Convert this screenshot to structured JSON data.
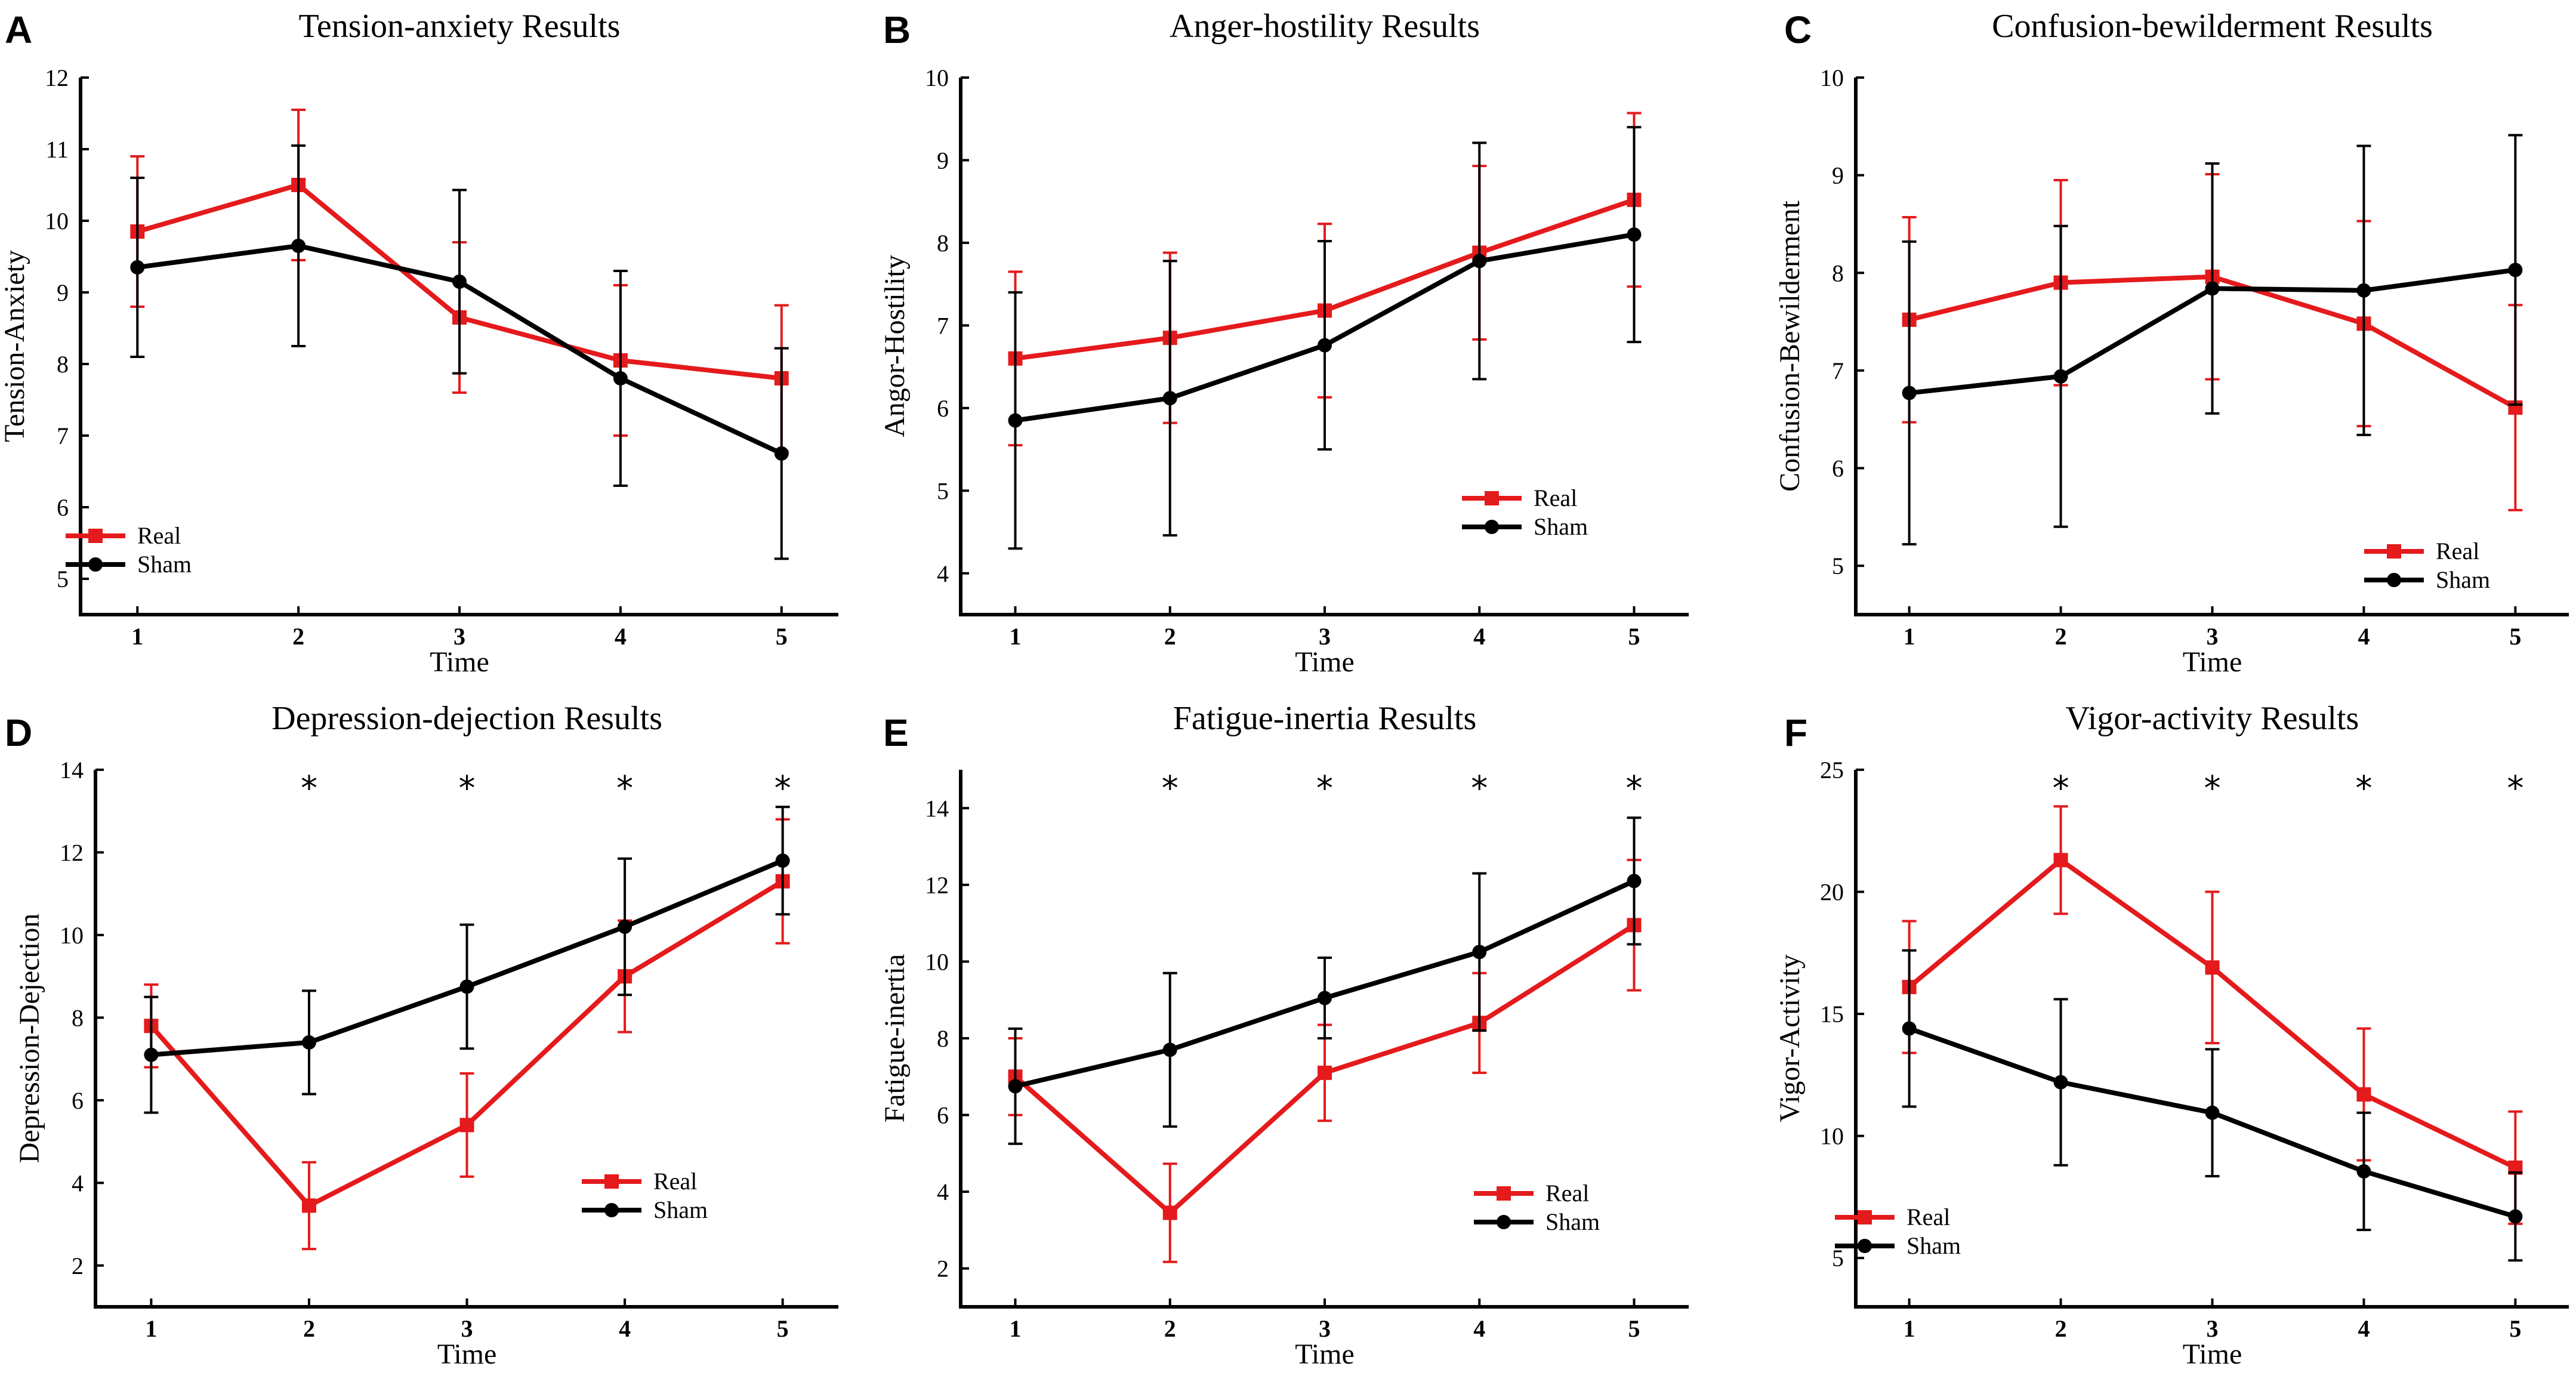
{
  "colors": {
    "real": "#e41a1c",
    "sham": "#000000",
    "axis": "#000000"
  },
  "chart_data": [
    {
      "panel": "A",
      "type": "line",
      "title": "Tension-anxiety Results",
      "xlabel": "Time",
      "ylabel": "Tension-Anxiety",
      "categories": [
        "1",
        "2",
        "3",
        "4",
        "5"
      ],
      "ylim": [
        4.5,
        12
      ],
      "yticks": [
        5,
        6,
        7,
        8,
        9,
        10,
        11,
        12
      ],
      "legend": "bottom-left",
      "significance": [],
      "series": [
        {
          "name": "Real",
          "values": [
            9.85,
            10.5,
            8.65,
            8.05,
            7.8
          ],
          "errors": [
            1.05,
            1.05,
            1.05,
            1.05,
            1.02
          ]
        },
        {
          "name": "Sham",
          "values": [
            9.35,
            9.65,
            9.15,
            7.8,
            6.75
          ],
          "errors": [
            1.25,
            1.4,
            1.28,
            1.5,
            1.47
          ]
        }
      ]
    },
    {
      "panel": "B",
      "type": "line",
      "title": "Anger-hostility Results",
      "xlabel": "Time",
      "ylabel": "Angor-Hostility",
      "categories": [
        "1",
        "2",
        "3",
        "4",
        "5"
      ],
      "ylim": [
        3.5,
        10
      ],
      "yticks": [
        4,
        5,
        6,
        7,
        8,
        9,
        10
      ],
      "legend": "bottom-right",
      "significance": [],
      "series": [
        {
          "name": "Real",
          "values": [
            6.6,
            6.85,
            7.18,
            7.88,
            8.52
          ],
          "errors": [
            1.05,
            1.03,
            1.05,
            1.05,
            1.05
          ]
        },
        {
          "name": "Sham",
          "values": [
            5.85,
            6.12,
            6.76,
            7.78,
            8.1
          ],
          "errors": [
            1.55,
            1.66,
            1.26,
            1.43,
            1.3
          ]
        }
      ]
    },
    {
      "panel": "C",
      "type": "line",
      "title": "Confusion-bewilderment Results",
      "xlabel": "Time",
      "ylabel": "Confusion-Bewilderment",
      "categories": [
        "1",
        "2",
        "3",
        "4",
        "5"
      ],
      "ylim": [
        4.5,
        10
      ],
      "yticks": [
        5,
        6,
        7,
        8,
        9,
        10
      ],
      "legend": "bottom-right",
      "significance": [],
      "series": [
        {
          "name": "Real",
          "values": [
            7.52,
            7.9,
            7.96,
            7.48,
            6.62
          ],
          "errors": [
            1.05,
            1.05,
            1.05,
            1.05,
            1.05
          ]
        },
        {
          "name": "Sham",
          "values": [
            6.77,
            6.94,
            7.84,
            7.82,
            8.03
          ],
          "errors": [
            1.55,
            1.54,
            1.28,
            1.48,
            1.38
          ]
        }
      ]
    },
    {
      "panel": "D",
      "type": "line",
      "title": "Depression-dejection Results",
      "xlabel": "Time",
      "ylabel": "Depression-Dejection",
      "categories": [
        "1",
        "2",
        "3",
        "4",
        "5"
      ],
      "ylim": [
        1,
        14
      ],
      "yticks": [
        2,
        4,
        6,
        8,
        10,
        12,
        14
      ],
      "legend": "bottom-right",
      "significance": [
        "",
        "*",
        "*",
        "*",
        "*"
      ],
      "series": [
        {
          "name": "Real",
          "values": [
            7.8,
            3.45,
            5.4,
            9.0,
            11.3
          ],
          "errors": [
            1.0,
            1.05,
            1.25,
            1.35,
            1.5
          ]
        },
        {
          "name": "Sham",
          "values": [
            7.1,
            7.4,
            8.75,
            10.2,
            11.8
          ],
          "errors": [
            1.4,
            1.25,
            1.5,
            1.65,
            1.3
          ]
        }
      ]
    },
    {
      "panel": "E",
      "type": "line",
      "title": "Fatigue-inertia Results",
      "xlabel": "Time",
      "ylabel": "Fatigue-inertia",
      "categories": [
        "1",
        "2",
        "3",
        "4",
        "5"
      ],
      "ylim": [
        1,
        15
      ],
      "yticks": [
        2,
        4,
        6,
        8,
        10,
        12,
        14
      ],
      "legend": "bottom-right",
      "significance": [
        "",
        "*",
        "*",
        "*",
        "*"
      ],
      "series": [
        {
          "name": "Real",
          "values": [
            7.0,
            3.45,
            7.1,
            8.4,
            10.95
          ],
          "errors": [
            1.0,
            1.28,
            1.25,
            1.3,
            1.7
          ]
        },
        {
          "name": "Sham",
          "values": [
            6.75,
            7.7,
            9.05,
            10.25,
            12.1
          ],
          "errors": [
            1.5,
            2.0,
            1.05,
            2.05,
            1.65
          ]
        }
      ]
    },
    {
      "panel": "F",
      "type": "line",
      "title": "Vigor-activity Results",
      "xlabel": "Time",
      "ylabel": "Vigor-Activity",
      "categories": [
        "1",
        "2",
        "3",
        "4",
        "5"
      ],
      "ylim": [
        3,
        25
      ],
      "yticks": [
        5,
        10,
        15,
        20,
        25
      ],
      "legend": "bottom-left",
      "significance": [
        "",
        "*",
        "*",
        "*",
        "*"
      ],
      "series": [
        {
          "name": "Real",
          "values": [
            16.1,
            21.3,
            16.9,
            11.7,
            8.7
          ],
          "errors": [
            2.7,
            2.2,
            3.1,
            2.7,
            2.3
          ]
        },
        {
          "name": "Sham",
          "values": [
            14.4,
            12.2,
            10.95,
            8.55,
            6.7
          ],
          "errors": [
            3.2,
            3.4,
            2.6,
            2.4,
            1.8
          ]
        }
      ]
    }
  ]
}
